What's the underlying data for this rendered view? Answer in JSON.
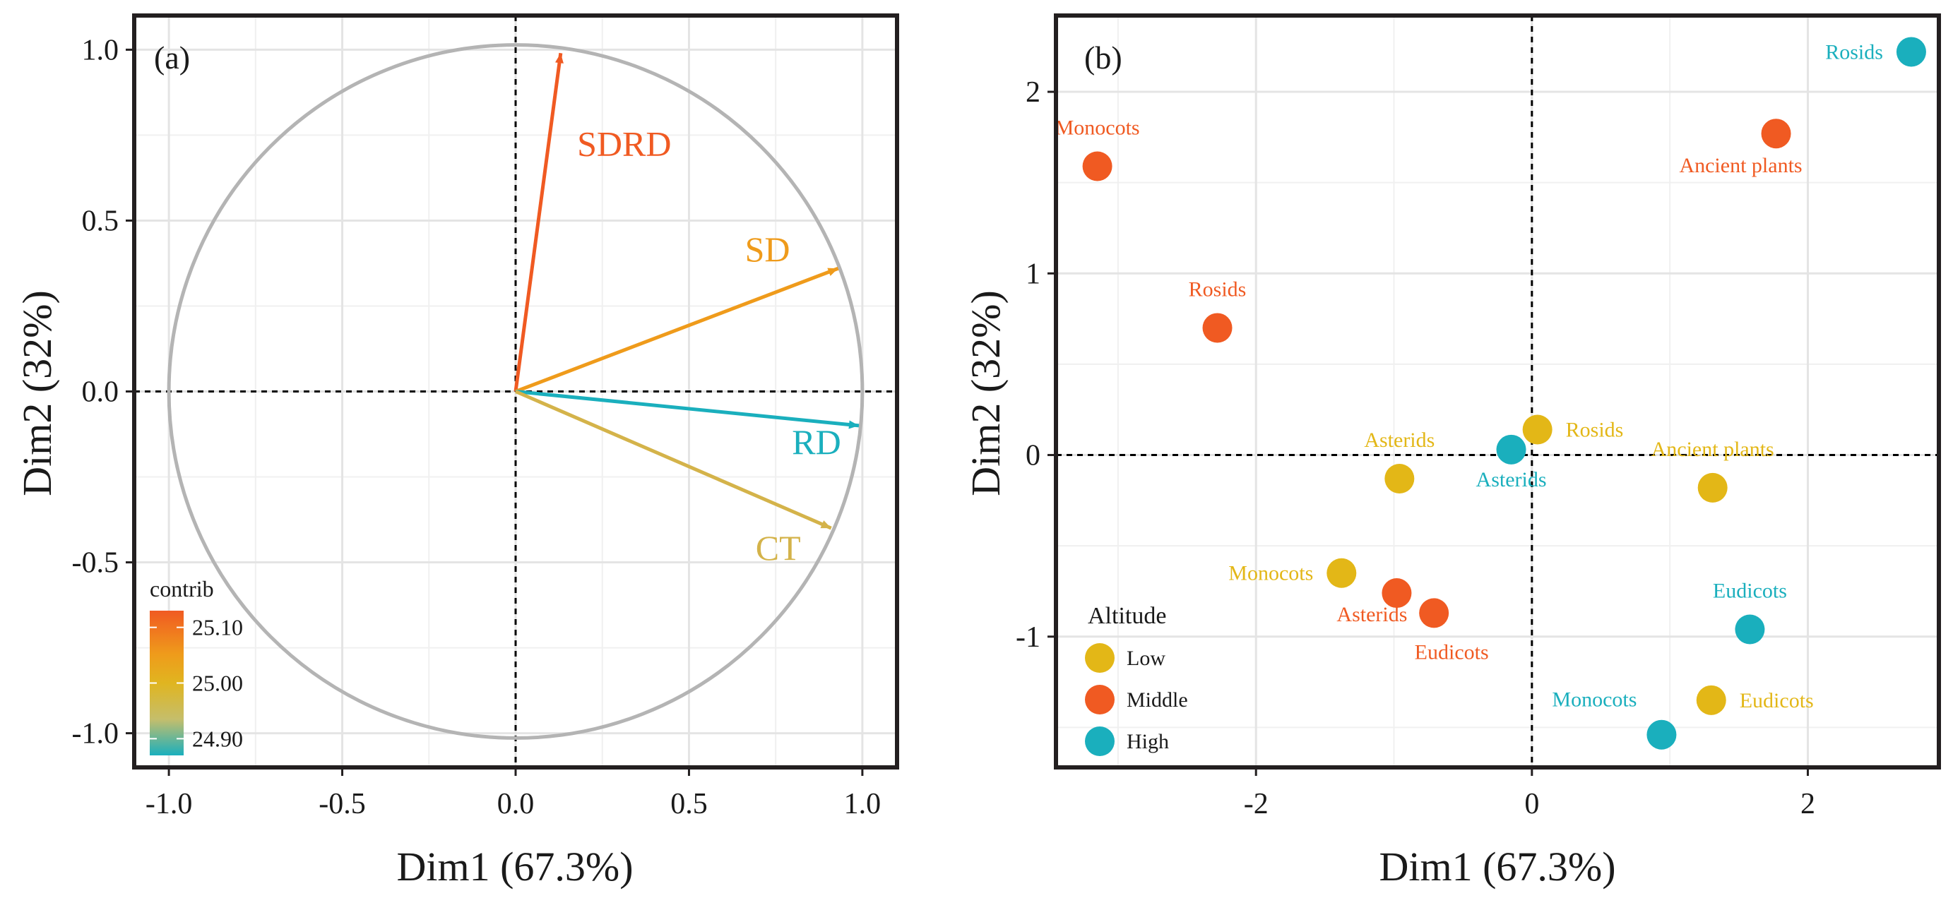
{
  "chart_data": [
    {
      "panel": "(a)",
      "type": "scatter",
      "subtype": "pca-variable-correlation-circle",
      "xlabel": "Dim1 (67.3%)",
      "ylabel": "Dim2 (32%)",
      "xlim": [
        -1.1,
        1.1
      ],
      "ylim": [
        -1.1,
        1.1
      ],
      "xticks": [
        -1.0,
        -0.5,
        0.0,
        0.5,
        1.0
      ],
      "yticks": [
        -1.0,
        -0.5,
        0.0,
        0.5,
        1.0
      ],
      "xtick_labels": [
        "-1.0",
        "-0.5",
        "0.0",
        "0.5",
        "1.0"
      ],
      "ytick_labels": [
        "-1.0",
        "-0.5",
        "0.0",
        "0.5",
        "1.0"
      ],
      "grid": true,
      "vectors": [
        {
          "name": "SDRD",
          "x": 0.13,
          "y": 0.99,
          "contrib": 25.12,
          "color": "#f05a22"
        },
        {
          "name": "SD",
          "x": 0.93,
          "y": 0.36,
          "contrib": 25.03,
          "color": "#ef9b1b"
        },
        {
          "name": "RD",
          "x": 0.99,
          "y": -0.1,
          "contrib": 24.88,
          "color": "#1aafbd"
        },
        {
          "name": "CT",
          "x": 0.91,
          "y": -0.4,
          "contrib": 24.97,
          "color": "#d4b34a"
        }
      ],
      "colorbar": {
        "title": "contrib",
        "ticks": [
          "25.10",
          "25.00",
          "24.90"
        ],
        "tick_values": [
          25.1,
          25.0,
          24.9
        ],
        "range": [
          24.87,
          25.13
        ],
        "colors": [
          "#f05a22",
          "#ef9b1b",
          "#e0b520",
          "#c5be6b",
          "#1aafbd"
        ]
      }
    },
    {
      "panel": "(b)",
      "type": "scatter",
      "xlabel": "Dim1 (67.3%)",
      "ylabel": "Dim2 (32%)",
      "xlim": [
        -3.45,
        2.95
      ],
      "ylim": [
        -1.72,
        2.42
      ],
      "xticks": [
        -2,
        0,
        2
      ],
      "yticks": [
        -1,
        0,
        1,
        2
      ],
      "xtick_labels": [
        "-2",
        "0",
        "2"
      ],
      "ytick_labels": [
        "-1",
        "0",
        "1",
        "2"
      ],
      "grid": true,
      "legend": {
        "title": "Altitude",
        "position": "bottom-left",
        "items": [
          {
            "name": "Low",
            "color": "#e3b717"
          },
          {
            "name": "Middle",
            "color": "#f05a22"
          },
          {
            "name": "High",
            "color": "#1aafbd"
          }
        ]
      },
      "points": [
        {
          "label": "Monocots",
          "group": "Middle",
          "x": -3.15,
          "y": 1.59,
          "label_pos": "above"
        },
        {
          "label": "Rosids",
          "group": "Middle",
          "x": -2.28,
          "y": 0.7,
          "label_pos": "above"
        },
        {
          "label": "Asterids",
          "group": "Middle",
          "x": -0.98,
          "y": -0.76,
          "label_pos": "below-left"
        },
        {
          "label": "Eudicots",
          "group": "Middle",
          "x": -0.71,
          "y": -0.87,
          "label_pos": "below-right"
        },
        {
          "label": "Ancient plants",
          "group": "Middle",
          "x": 1.77,
          "y": 1.77,
          "label_pos": "below-left"
        },
        {
          "label": "Rosids",
          "group": "High",
          "x": 2.75,
          "y": 2.22,
          "label_pos": "left"
        },
        {
          "label": "Asterids",
          "group": "High",
          "x": -0.15,
          "y": 0.03,
          "label_pos": "below"
        },
        {
          "label": "Eudicots",
          "group": "High",
          "x": 1.58,
          "y": -0.96,
          "label_pos": "above"
        },
        {
          "label": "Monocots",
          "group": "High",
          "x": 0.94,
          "y": -1.54,
          "label_pos": "above-left"
        },
        {
          "label": "Rosids",
          "group": "Low",
          "x": 0.04,
          "y": 0.14,
          "label_pos": "right"
        },
        {
          "label": "Asterids",
          "group": "Low",
          "x": -0.96,
          "y": -0.13,
          "label_pos": "above"
        },
        {
          "label": "Ancient plants",
          "group": "Low",
          "x": 1.31,
          "y": -0.18,
          "label_pos": "above"
        },
        {
          "label": "Monocots",
          "group": "Low",
          "x": -1.38,
          "y": -0.65,
          "label_pos": "left"
        },
        {
          "label": "Eudicots",
          "group": "Low",
          "x": 1.3,
          "y": -1.35,
          "label_pos": "right"
        }
      ]
    }
  ]
}
